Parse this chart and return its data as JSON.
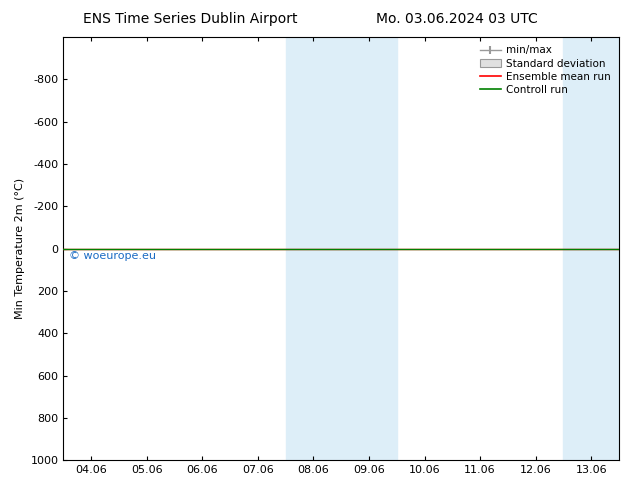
{
  "title_left": "ENS Time Series Dublin Airport",
  "title_right": "Mo. 03.06.2024 03 UTC",
  "ylabel": "Min Temperature 2m (°C)",
  "xlabel": "",
  "ylim_top": -1000,
  "ylim_bottom": 1000,
  "xtick_labels": [
    "04.06",
    "05.06",
    "06.06",
    "07.06",
    "08.06",
    "09.06",
    "10.06",
    "11.06",
    "12.06",
    "13.06"
  ],
  "xtick_positions": [
    0,
    1,
    2,
    3,
    4,
    5,
    6,
    7,
    8,
    9
  ],
  "ytick_positions": [
    -800,
    -600,
    -400,
    -200,
    0,
    200,
    400,
    600,
    800,
    1000
  ],
  "ytick_labels": [
    "-800",
    "-600",
    "-400",
    "-200",
    "0",
    "200",
    "400",
    "600",
    "800",
    "1000"
  ],
  "shaded_regions": [
    {
      "xmin": 3.5,
      "xmax": 4.5,
      "color": "#ddeef8"
    },
    {
      "xmin": 4.5,
      "xmax": 5.5,
      "color": "#ddeef8"
    },
    {
      "xmin": 8.5,
      "xmax": 9.5,
      "color": "#ddeef8"
    },
    {
      "xmin": 9.5,
      "xmax": 10.5,
      "color": "#ddeef8"
    }
  ],
  "horizontal_line_y": 0,
  "ensemble_mean_color": "#ff0000",
  "control_run_color": "#008000",
  "watermark_text": "© woeurope.eu",
  "watermark_color": "#1a6bc4",
  "bg_color": "#ffffff",
  "plot_bg_color": "#ffffff",
  "border_color": "#000000",
  "title_fontsize": 10,
  "axis_fontsize": 8,
  "tick_fontsize": 8
}
